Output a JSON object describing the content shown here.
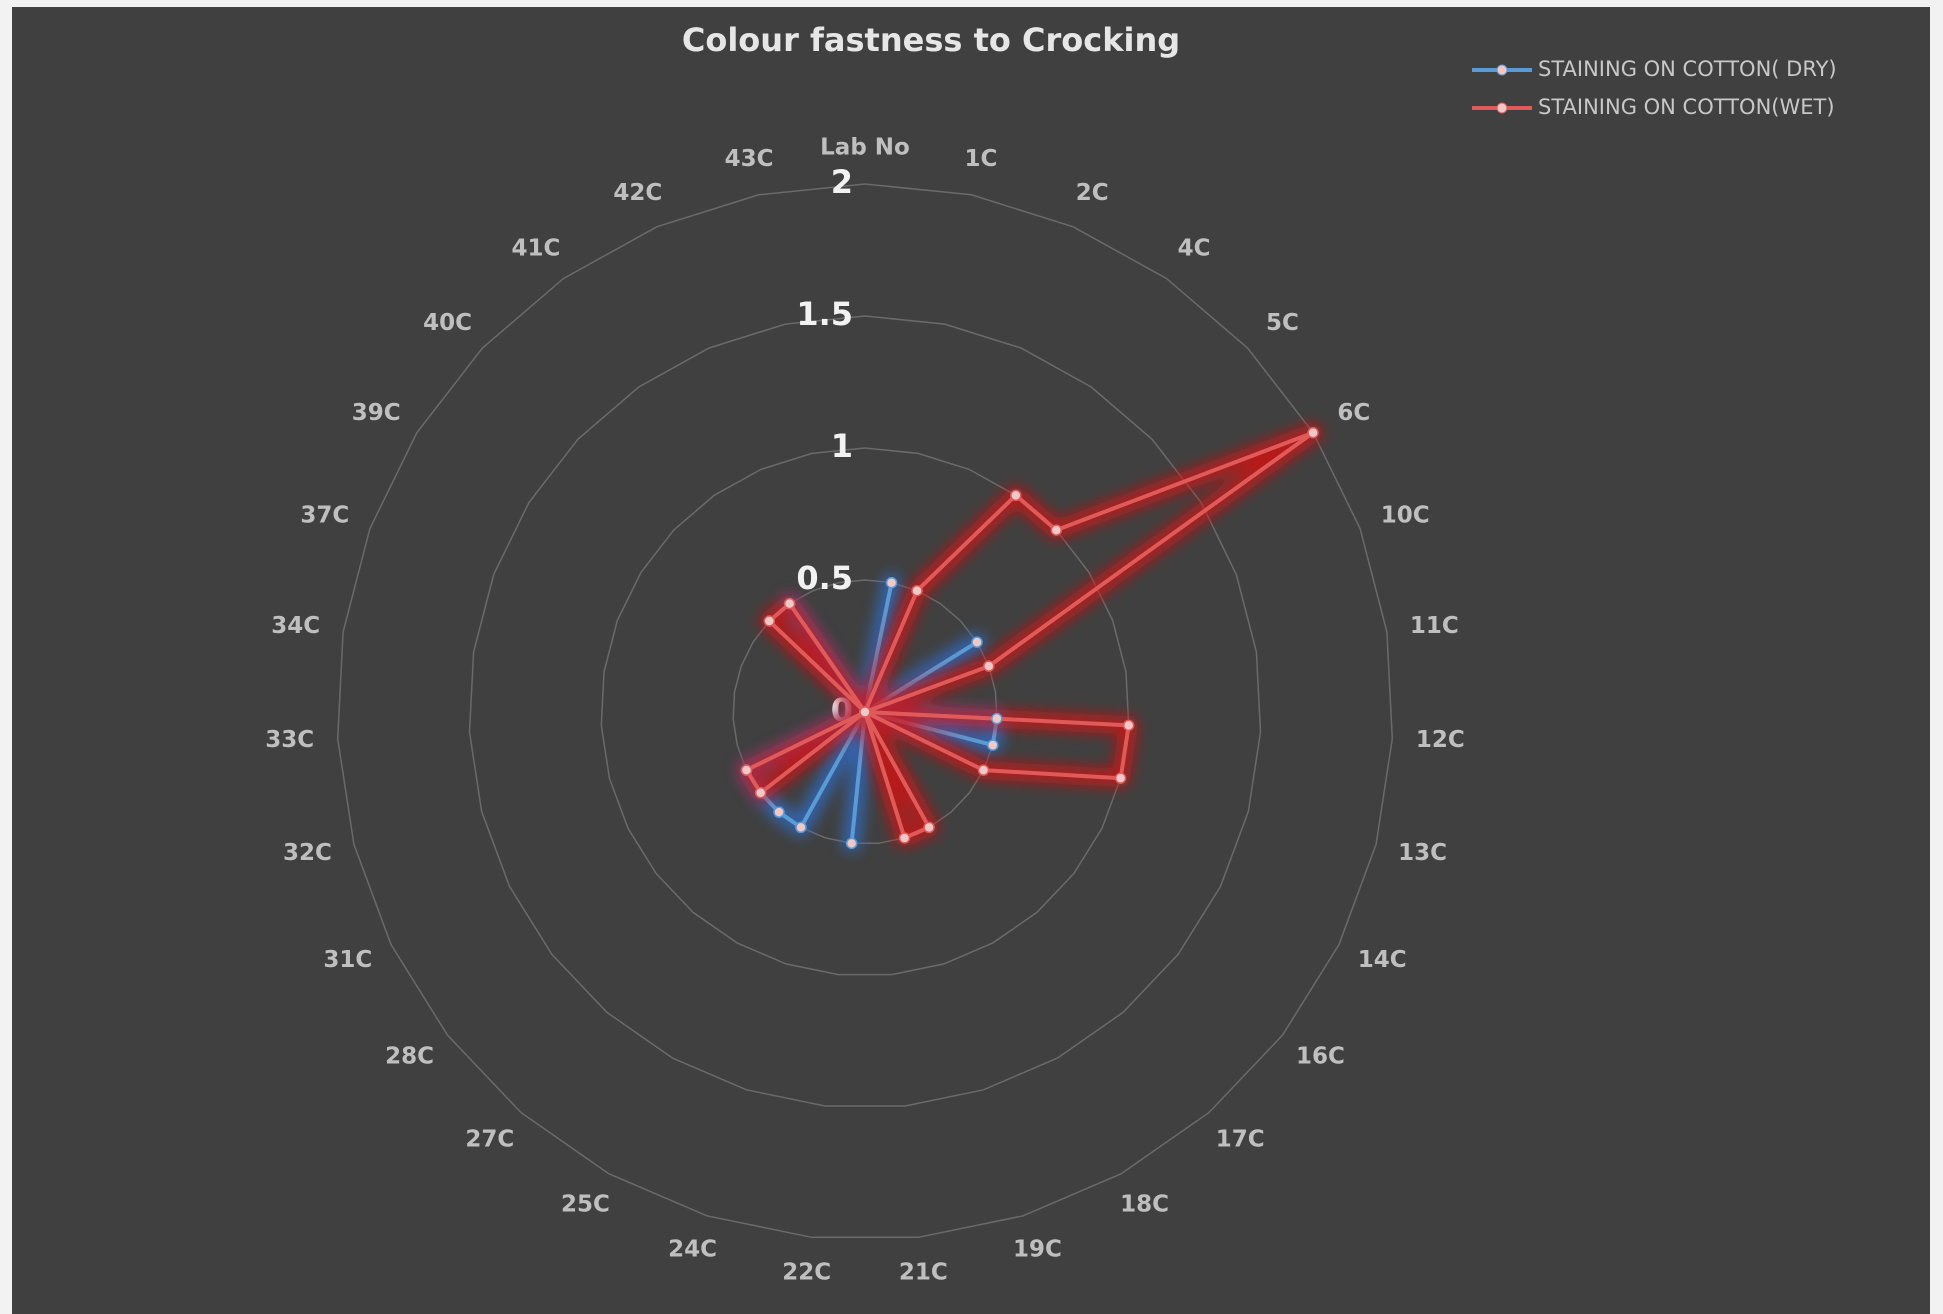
{
  "chart_data": {
    "type": "radar",
    "title": "Colour fastness to Crocking",
    "categories": [
      "Lab No",
      "1C",
      "2C",
      "4C",
      "5C",
      "6C",
      "10C",
      "11C",
      "12C",
      "13C",
      "14C",
      "16C",
      "17C",
      "18C",
      "19C",
      "21C",
      "22C",
      "24C",
      "25C",
      "27C",
      "28C",
      "31C",
      "32C",
      "33C",
      "34C",
      "37C",
      "39C",
      "40C",
      "41C",
      "42C",
      "43C"
    ],
    "series": [
      {
        "name": "STAINING ON COTTON( DRY)",
        "color": "#5b9bd5",
        "glow": "#2f6fd0",
        "values": [
          0,
          0.5,
          0,
          0,
          0,
          0.5,
          0,
          0,
          0.5,
          0.5,
          0,
          0,
          0,
          0,
          0,
          0,
          0.5,
          0,
          0.5,
          0.5,
          0.5,
          0.5,
          0,
          0,
          0,
          0,
          0,
          0,
          0.5,
          0,
          0
        ]
      },
      {
        "name": "STAINING ON COTTON(WET)",
        "color": "#e05a5a",
        "glow": "#e01010",
        "values": [
          0,
          0,
          0.5,
          1,
          1,
          2,
          0.5,
          0,
          1,
          1,
          0.5,
          0,
          0,
          0.5,
          0.5,
          0,
          0,
          0,
          0,
          0,
          0.5,
          0.5,
          0,
          0,
          0,
          0,
          0,
          0.5,
          0.5,
          0,
          0
        ]
      }
    ],
    "ylim": [
      0,
      2
    ],
    "yticks": [
      0,
      0.5,
      1,
      1.5,
      2
    ],
    "grid": true,
    "legend": "top-right"
  }
}
